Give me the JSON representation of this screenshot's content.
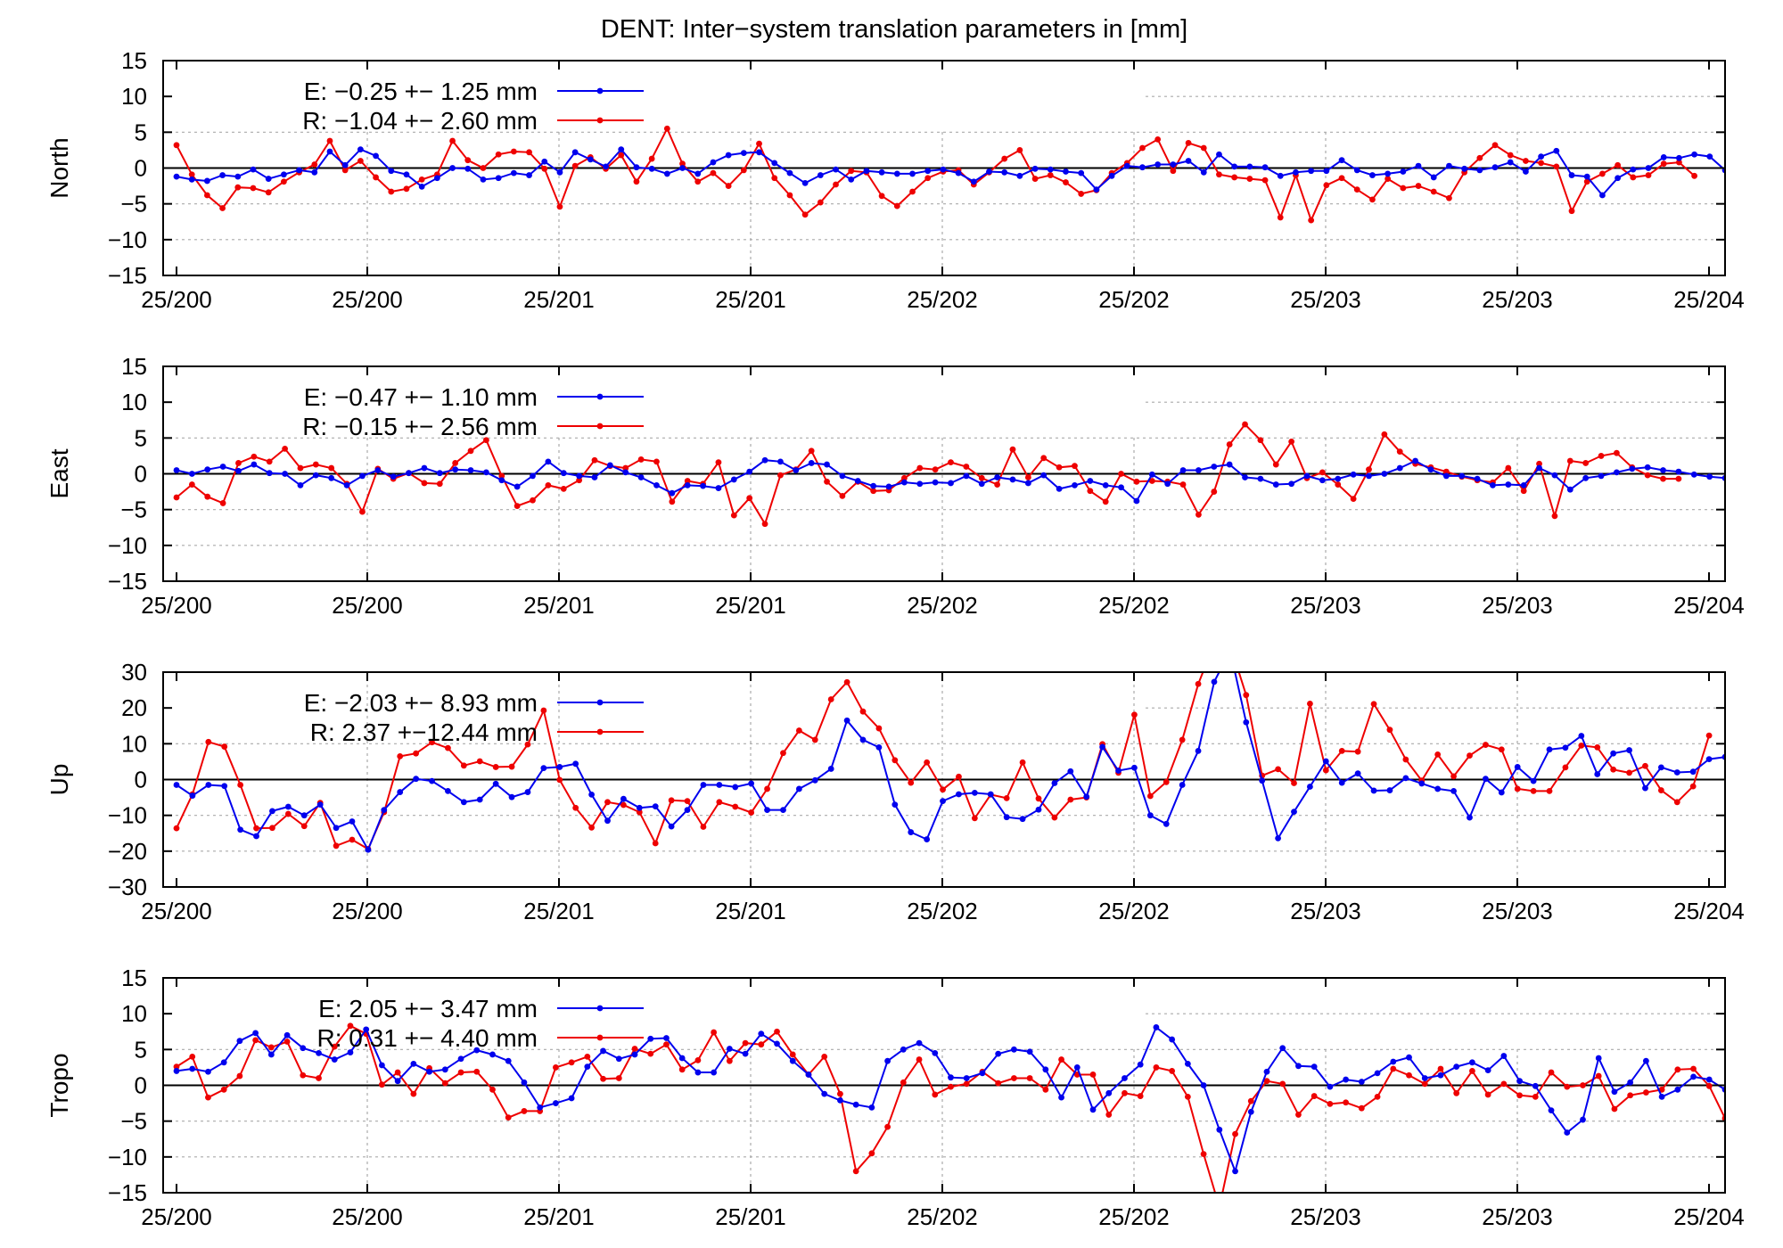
{
  "chart_data": [
    {
      "type": "line",
      "title": "DENT: Inter−system translation parameters in [mm]",
      "ylabel": "North",
      "ylim": [
        -15,
        15
      ],
      "yticks": [
        "15",
        "10",
        "5",
        "0",
        "−5",
        "−10",
        "−15"
      ],
      "xtick_labels": [
        "25/200",
        "25/200",
        "25/201",
        "25/201",
        "25/202",
        "25/202",
        "25/203",
        "25/203",
        "25/204"
      ],
      "grid": true,
      "legend_position": "top-left",
      "series": [
        {
          "name": "E:  −0.25 +− 1.25 mm",
          "color": "#0000ee",
          "values": [
            -1.2,
            -1.6,
            -1.8,
            -1.0,
            -1.2,
            -0.2,
            -1.5,
            -0.9,
            -0.3,
            -0.6,
            2.3,
            0.4,
            2.6,
            1.7,
            -0.4,
            -0.9,
            -2.6,
            -1.4,
            0.0,
            -0.1,
            -1.6,
            -1.4,
            -0.7,
            -1.0,
            0.9,
            -0.6,
            2.2,
            1.2,
            0.2,
            2.6,
            0.1,
            -0.1,
            -0.8,
            0.0,
            -0.8,
            0.8,
            1.8,
            2.1,
            2.2,
            0.7,
            -0.7,
            -2.1,
            -1.0,
            -0.2,
            -1.6,
            -0.4,
            -0.6,
            -0.8,
            -0.8,
            -0.4,
            -0.2,
            -0.7,
            -1.9,
            -0.5,
            -0.6,
            -1.1,
            -0.1,
            -0.2,
            -0.5,
            -0.7,
            -3.0,
            -1.1,
            0.3,
            0.1,
            0.5,
            0.5,
            1.0,
            -0.6,
            1.9,
            0.2,
            0.2,
            0.1,
            -1.1,
            -0.6,
            -0.4,
            -0.4,
            1.1,
            -0.3,
            -1.0,
            -0.8,
            -0.5,
            0.3,
            -1.3,
            0.3,
            -0.1,
            -0.3,
            0.1,
            0.8,
            -0.5,
            1.6,
            2.4,
            -1.0,
            -1.2,
            -3.8,
            -1.4,
            -0.2,
            0.0,
            1.5,
            1.4,
            1.9,
            1.6,
            -0.3
          ]
        },
        {
          "name": "R:  −1.04 +− 2.60 mm",
          "color": "#ee0000",
          "values": [
            3.2,
            -0.9,
            -3.8,
            -5.6,
            -2.7,
            -2.8,
            -3.4,
            -1.9,
            -0.6,
            0.5,
            3.8,
            -0.3,
            1.0,
            -1.3,
            -3.3,
            -2.9,
            -1.6,
            -0.9,
            3.8,
            1.1,
            0.0,
            1.9,
            2.3,
            2.2,
            -0.1,
            -5.4,
            0.3,
            1.5,
            -0.1,
            1.8,
            -1.9,
            1.3,
            5.5,
            0.6,
            -1.9,
            -0.7,
            -2.5,
            -0.3,
            3.4,
            -1.4,
            -3.8,
            -6.5,
            -4.8,
            -2.3,
            -0.4,
            -0.6,
            -3.9,
            -5.3,
            -3.3,
            -1.4,
            -0.5,
            -0.3,
            -2.3,
            -0.6,
            1.3,
            2.5,
            -1.5,
            -1.0,
            -2.0,
            -3.6,
            -3.1,
            -0.7,
            0.7,
            2.8,
            4.0,
            -0.4,
            3.5,
            2.8,
            -0.9,
            -1.3,
            -1.5,
            -1.7,
            -6.9,
            -1.0,
            -7.3,
            -2.4,
            -1.4,
            -3.0,
            -4.4,
            -1.5,
            -2.8,
            -2.5,
            -3.3,
            -4.2,
            -0.6,
            1.4,
            3.2,
            1.8,
            1.0,
            0.7,
            0.2,
            -6.0,
            -1.9,
            -0.8,
            0.4,
            -1.3,
            -1.0,
            0.6,
            0.8,
            -1.1
          ]
        }
      ]
    },
    {
      "type": "line",
      "ylabel": "East",
      "ylim": [
        -15,
        15
      ],
      "yticks": [
        "15",
        "10",
        "5",
        "0",
        "−5",
        "−10",
        "−15"
      ],
      "xtick_labels": [
        "25/200",
        "25/200",
        "25/201",
        "25/201",
        "25/202",
        "25/202",
        "25/203",
        "25/203",
        "25/204"
      ],
      "grid": true,
      "legend_position": "top-left",
      "series": [
        {
          "name": "E:  −0.47 +− 1.10 mm",
          "color": "#0000ee",
          "values": [
            0.5,
            0.0,
            0.6,
            1.0,
            0.4,
            1.3,
            0.1,
            0.0,
            -1.6,
            -0.2,
            -0.6,
            -1.6,
            -0.3,
            0.5,
            -0.4,
            0.1,
            0.8,
            0.1,
            0.6,
            0.5,
            0.2,
            -0.9,
            -1.8,
            -0.3,
            1.7,
            0.1,
            -0.3,
            -0.5,
            1.2,
            0.2,
            -0.5,
            -1.6,
            -2.7,
            -1.6,
            -1.7,
            -2.0,
            -0.8,
            0.3,
            1.9,
            1.7,
            0.5,
            1.5,
            1.3,
            -0.3,
            -1.0,
            -1.7,
            -1.8,
            -1.2,
            -1.4,
            -1.2,
            -1.3,
            -0.3,
            -1.4,
            -0.5,
            -0.8,
            -1.3,
            -0.2,
            -2.1,
            -1.6,
            -1.0,
            -1.6,
            -1.9,
            -3.8,
            -0.1,
            -1.4,
            0.5,
            0.5,
            1.0,
            1.3,
            -0.5,
            -0.7,
            -1.5,
            -1.4,
            -0.3,
            -0.9,
            -0.7,
            -0.1,
            -0.3,
            0.0,
            0.8,
            1.8,
            0.6,
            -0.3,
            -0.3,
            -0.7,
            -1.6,
            -1.5,
            -1.6,
            0.8,
            -0.2,
            -2.2,
            -0.6,
            -0.3,
            0.2,
            0.7,
            0.9,
            0.5,
            0.3,
            -0.1,
            -0.4,
            -0.6
          ]
        },
        {
          "name": "R:  −0.15 +− 2.56 mm",
          "color": "#ee0000",
          "values": [
            -3.3,
            -1.5,
            -3.2,
            -4.1,
            1.5,
            2.4,
            1.7,
            3.5,
            0.8,
            1.3,
            0.8,
            -1.4,
            -5.3,
            0.7,
            -0.7,
            0.1,
            -1.3,
            -1.4,
            1.5,
            3.2,
            4.7,
            -0.3,
            -4.5,
            -3.7,
            -1.6,
            -2.1,
            -0.9,
            1.9,
            1.1,
            0.8,
            2.0,
            1.7,
            -3.9,
            -1.0,
            -1.4,
            1.6,
            -5.8,
            -3.4,
            -7.0,
            -0.2,
            0.6,
            3.2,
            -1.1,
            -3.1,
            -1.1,
            -2.4,
            -2.3,
            -0.6,
            0.8,
            0.6,
            1.6,
            1.0,
            -0.6,
            -1.5,
            3.4,
            -0.5,
            2.2,
            0.9,
            1.1,
            -2.4,
            -3.9,
            0.0,
            -1.1,
            -1.0,
            -1.1,
            -1.5,
            -5.7,
            -2.5,
            4.1,
            6.9,
            4.7,
            1.3,
            4.5,
            -0.6,
            0.2,
            -1.5,
            -3.5,
            0.6,
            5.5,
            3.1,
            1.4,
            0.9,
            0.3,
            -0.4,
            -0.9,
            -1.2,
            0.8,
            -2.4,
            1.4,
            -5.9,
            1.8,
            1.5,
            2.5,
            2.9,
            0.9,
            -0.2,
            -0.7,
            -0.7
          ]
        }
      ]
    },
    {
      "type": "line",
      "ylabel": "Up",
      "ylim": [
        -30,
        30
      ],
      "yticks": [
        "30",
        "20",
        "10",
        "0",
        "−10",
        "−20",
        "−30"
      ],
      "xtick_labels": [
        "25/200",
        "25/200",
        "25/201",
        "25/201",
        "25/202",
        "25/202",
        "25/203",
        "25/203",
        "25/204"
      ],
      "grid": true,
      "legend_position": "top-left",
      "series": [
        {
          "name": "E:  −2.03 +− 8.93 mm",
          "color": "#0000ee",
          "values": [
            -1.5,
            -4.5,
            -1.5,
            -1.8,
            -14.0,
            -15.8,
            -8.8,
            -7.6,
            -10.0,
            -7.0,
            -13.5,
            -11.7,
            -19.6,
            -8.5,
            -3.5,
            0.2,
            -0.4,
            -3.2,
            -6.3,
            -5.6,
            -1.2,
            -4.9,
            -3.5,
            3.2,
            3.5,
            4.4,
            -4.2,
            -11.5,
            -5.4,
            -7.9,
            -7.5,
            -13.1,
            -8.5,
            -1.5,
            -1.5,
            -2.1,
            -1.1,
            -8.5,
            -8.5,
            -2.6,
            -0.2,
            3.0,
            16.5,
            11.1,
            9.0,
            -7.0,
            -14.7,
            -16.7,
            -6.0,
            -4.1,
            -3.7,
            -4.1,
            -10.5,
            -11.0,
            -8.4,
            -1.0,
            2.3,
            -4.8,
            9.1,
            2.5,
            3.3,
            -10.0,
            -12.4,
            -1.5,
            8.0,
            27.3,
            36.0,
            16.0,
            -0.3,
            -16.4,
            -9.0,
            -2.0,
            5.1,
            -0.9,
            1.7,
            -3.1,
            -3.0,
            0.4,
            -1.1,
            -2.6,
            -3.2,
            -10.6,
            0.2,
            -3.6,
            3.5,
            -0.4,
            8.4,
            8.9,
            12.2,
            1.5,
            7.3,
            8.2,
            -2.4,
            3.4,
            2.0,
            2.2,
            5.7,
            6.3
          ]
        },
        {
          "name": "R:  2.37 +−12.44 mm",
          "color": "#ee0000",
          "values": [
            -13.6,
            -4.1,
            10.5,
            9.2,
            -1.5,
            -13.6,
            -13.5,
            -9.6,
            -13.0,
            -6.5,
            -18.5,
            -16.8,
            -19.4,
            -9.1,
            6.5,
            7.3,
            10.4,
            8.8,
            3.9,
            5.1,
            3.5,
            3.6,
            9.8,
            19.3,
            -0.1,
            -7.9,
            -13.4,
            -6.3,
            -7.1,
            -9.1,
            -17.8,
            -5.8,
            -6.0,
            -13.2,
            -6.3,
            -7.6,
            -9.2,
            -2.6,
            7.4,
            13.7,
            11.1,
            22.4,
            27.2,
            19.0,
            14.3,
            5.4,
            -0.9,
            4.8,
            -2.8,
            0.8,
            -10.8,
            -4.2,
            -5.2,
            4.8,
            -5.3,
            -10.6,
            -5.6,
            -5.0,
            9.9,
            1.9,
            18.1,
            -4.6,
            -0.7,
            11.1,
            26.7,
            38.0,
            37.7,
            23.6,
            1.1,
            2.9,
            -1.0,
            21.2,
            2.6,
            8.0,
            7.8,
            21.1,
            13.9,
            5.6,
            -0.3,
            7.0,
            0.9,
            6.7,
            9.7,
            8.4,
            -2.6,
            -3.2,
            -3.2,
            3.4,
            9.5,
            9.0,
            2.8,
            1.9,
            3.8,
            -3.0,
            -6.3,
            -1.9,
            12.3
          ]
        }
      ]
    },
    {
      "type": "line",
      "ylabel": "Tropo",
      "ylim": [
        -15,
        15
      ],
      "yticks": [
        "15",
        "10",
        "5",
        "0",
        "−5",
        "−10",
        "−15"
      ],
      "xtick_labels": [
        "25/200",
        "25/200",
        "25/201",
        "25/201",
        "25/202",
        "25/202",
        "25/203",
        "25/203",
        "25/204"
      ],
      "grid": true,
      "legend_position": "top-left",
      "series": [
        {
          "name": "E:  2.05 +− 3.47 mm",
          "color": "#0000ee",
          "values": [
            2.0,
            2.3,
            1.9,
            3.2,
            6.2,
            7.3,
            4.3,
            7.0,
            5.2,
            4.5,
            3.6,
            4.6,
            7.8,
            2.8,
            0.6,
            3.0,
            1.9,
            2.2,
            3.7,
            4.9,
            4.3,
            3.4,
            0.4,
            -3.1,
            -2.5,
            -1.8,
            2.6,
            4.8,
            3.7,
            4.3,
            6.5,
            6.6,
            3.8,
            1.8,
            1.8,
            5.1,
            4.4,
            7.2,
            5.8,
            3.4,
            1.5,
            -1.2,
            -2.1,
            -2.7,
            -3.1,
            3.4,
            5.0,
            5.9,
            4.5,
            1.1,
            1.0,
            1.7,
            4.4,
            5.0,
            4.7,
            2.2,
            -1.7,
            2.5,
            -3.4,
            -1.1,
            1.0,
            2.9,
            8.1,
            6.4,
            3.0,
            0.0,
            -6.2,
            -12.0,
            -3.7,
            1.9,
            5.2,
            2.7,
            2.6,
            -0.2,
            0.8,
            0.5,
            1.7,
            3.3,
            3.9,
            1.0,
            1.4,
            2.6,
            3.2,
            2.1,
            4.1,
            0.6,
            -0.1,
            -3.5,
            -6.6,
            -4.8,
            3.8,
            -0.9,
            0.4,
            3.4,
            -1.6,
            -0.6,
            1.2,
            0.8,
            -0.6
          ]
        },
        {
          "name": "R:  0.31 +− 4.40 mm",
          "color": "#ee0000",
          "values": [
            2.6,
            4.0,
            -1.7,
            -0.6,
            1.3,
            6.3,
            5.3,
            6.1,
            1.4,
            1.0,
            5.4,
            8.3,
            7.2,
            0.1,
            1.8,
            -1.2,
            2.4,
            0.3,
            1.8,
            1.9,
            -0.6,
            -4.5,
            -3.6,
            -3.6,
            2.5,
            3.2,
            4.0,
            0.9,
            1.0,
            5.1,
            4.4,
            5.7,
            2.2,
            3.5,
            7.4,
            3.4,
            5.9,
            5.7,
            7.5,
            4.3,
            1.5,
            4.0,
            -1.2,
            -12.0,
            -9.5,
            -5.8,
            0.4,
            3.6,
            -1.3,
            -0.2,
            0.2,
            1.9,
            0.3,
            1.0,
            1.0,
            -0.6,
            3.6,
            1.5,
            1.5,
            -4.1,
            -1.1,
            -1.5,
            2.5,
            2.0,
            -1.6,
            -9.6,
            -17.0,
            -6.8,
            -2.2,
            0.6,
            0.2,
            -4.1,
            -1.5,
            -2.6,
            -2.4,
            -3.2,
            -1.6,
            2.3,
            1.4,
            0.2,
            2.3,
            -1.1,
            2.0,
            -1.3,
            0.2,
            -1.4,
            -1.6,
            1.8,
            -0.2,
            0.0,
            1.3,
            -3.3,
            -1.4,
            -1.0,
            -0.6,
            2.2,
            2.3,
            -0.1,
            -4.6
          ]
        }
      ]
    }
  ]
}
